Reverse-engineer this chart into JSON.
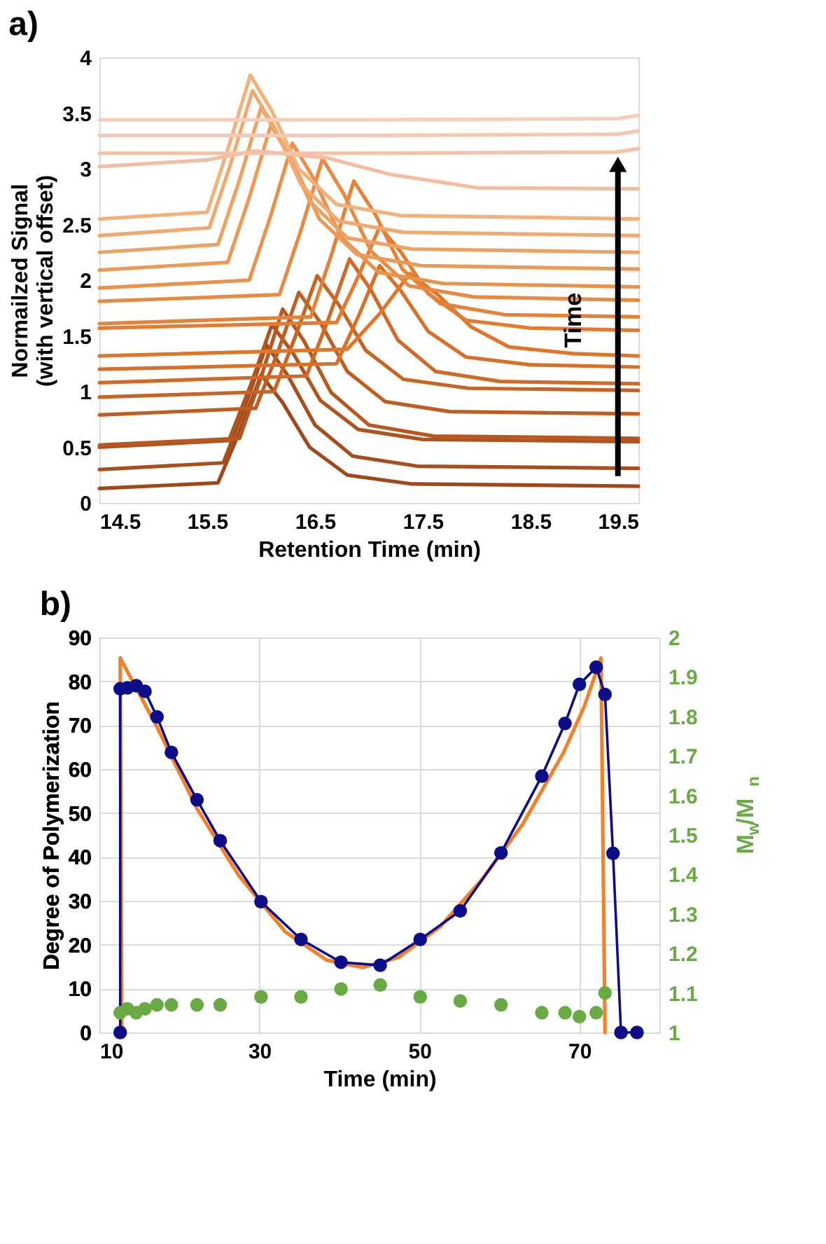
{
  "chart_data": [
    {
      "type": "line",
      "title": "a)",
      "xlabel": "Retention Time (min)",
      "ylabel": "Normailzed Signal\n(with vertical offset)",
      "xlim": [
        14.5,
        19.5
      ],
      "ylim": [
        0,
        4
      ],
      "xticks": [
        14.5,
        15.5,
        16.5,
        17.5,
        18.5,
        19.5
      ],
      "yticks": [
        0,
        0.5,
        1,
        1.5,
        2,
        2.5,
        3,
        3.5,
        4
      ],
      "grid": false,
      "annotations": [
        "Time"
      ],
      "series": [
        {
          "color": "#a0481a",
          "x": [
            14.5,
            15.6,
            15.8,
            16.0,
            16.2,
            16.45,
            16.8,
            17.4,
            19.5
          ],
          "values": [
            0.13,
            0.18,
            0.64,
            1.15,
            0.9,
            0.5,
            0.25,
            0.17,
            0.15
          ]
        },
        {
          "color": "#a84e1c",
          "x": [
            14.5,
            15.65,
            15.85,
            16.05,
            16.25,
            16.5,
            16.85,
            17.45,
            19.5
          ],
          "values": [
            0.3,
            0.36,
            0.86,
            1.42,
            1.14,
            0.7,
            0.42,
            0.33,
            0.31
          ]
        },
        {
          "color": "#b0531e",
          "x": [
            14.5,
            15.7,
            15.9,
            16.1,
            16.3,
            16.55,
            16.9,
            17.5,
            19.5
          ],
          "values": [
            0.5,
            0.56,
            1.05,
            1.6,
            1.34,
            0.92,
            0.66,
            0.57,
            0.55
          ]
        },
        {
          "color": "#b85820",
          "x": [
            14.5,
            15.8,
            16.0,
            16.2,
            16.4,
            16.65,
            17.0,
            17.6,
            19.5
          ],
          "values": [
            0.52,
            0.58,
            1.13,
            1.74,
            1.45,
            0.99,
            0.7,
            0.6,
            0.58
          ]
        },
        {
          "color": "#c05e22",
          "x": [
            14.5,
            15.95,
            16.15,
            16.35,
            16.55,
            16.8,
            17.15,
            17.75,
            19.5
          ],
          "values": [
            0.79,
            0.85,
            1.34,
            1.89,
            1.62,
            1.18,
            0.91,
            0.82,
            0.8
          ]
        },
        {
          "color": "#c86424",
          "x": [
            14.5,
            16.12,
            16.32,
            16.52,
            16.72,
            16.97,
            17.32,
            17.92,
            19.5
          ],
          "values": [
            0.95,
            1.0,
            1.5,
            2.04,
            1.78,
            1.37,
            1.11,
            1.03,
            1.01
          ]
        },
        {
          "color": "#d06a26",
          "x": [
            14.5,
            16.42,
            16.62,
            16.82,
            17.02,
            17.27,
            17.62,
            18.22,
            19.5
          ],
          "values": [
            1.08,
            1.14,
            1.64,
            2.19,
            1.91,
            1.46,
            1.18,
            1.09,
            1.07
          ]
        },
        {
          "color": "#d87028",
          "x": [
            14.5,
            16.7,
            16.9,
            17.1,
            17.3,
            17.55,
            17.9,
            18.5,
            19.5
          ],
          "values": [
            1.2,
            1.25,
            1.67,
            2.13,
            1.9,
            1.54,
            1.31,
            1.24,
            1.22
          ]
        },
        {
          "color": "#e0762a",
          "x": [
            14.5,
            16.8,
            17.1,
            17.38,
            17.65,
            17.95,
            18.3,
            18.9,
            19.5
          ],
          "values": [
            1.32,
            1.38,
            1.7,
            2.06,
            1.86,
            1.58,
            1.4,
            1.34,
            1.32
          ]
        },
        {
          "color": "#e47c30",
          "x": [
            14.5,
            16.7,
            16.9,
            17.1,
            17.3,
            17.55,
            17.9,
            18.5,
            19.5
          ],
          "values": [
            1.57,
            1.62,
            2.03,
            2.48,
            2.25,
            1.88,
            1.64,
            1.57,
            1.55
          ]
        },
        {
          "color": "#e68238",
          "x": [
            14.5,
            16.46,
            16.66,
            16.86,
            17.06,
            17.31,
            17.66,
            18.26,
            19.5
          ],
          "values": [
            1.61,
            1.67,
            2.25,
            2.89,
            2.59,
            2.1,
            1.79,
            1.69,
            1.67
          ]
        },
        {
          "color": "#e88a42",
          "x": [
            14.5,
            16.17,
            16.37,
            16.57,
            16.77,
            17.02,
            17.37,
            17.97,
            19.5
          ],
          "values": [
            1.81,
            1.87,
            2.45,
            3.09,
            2.77,
            2.26,
            1.95,
            1.85,
            1.82
          ]
        },
        {
          "color": "#ea924c",
          "x": [
            14.5,
            15.89,
            16.09,
            16.29,
            16.49,
            16.74,
            17.09,
            17.69,
            19.5
          ],
          "values": [
            1.93,
            2.0,
            2.58,
            3.23,
            2.91,
            2.39,
            2.07,
            1.97,
            1.94
          ]
        },
        {
          "color": "#ec9a58",
          "x": [
            14.5,
            15.69,
            15.89,
            16.09,
            16.29,
            16.54,
            16.89,
            17.49,
            19.5
          ],
          "values": [
            2.09,
            2.16,
            2.74,
            3.39,
            3.07,
            2.55,
            2.23,
            2.13,
            2.1
          ]
        },
        {
          "color": "#eea262",
          "x": [
            14.5,
            15.6,
            15.8,
            16.0,
            16.2,
            16.45,
            16.8,
            17.4,
            19.5
          ],
          "values": [
            2.25,
            2.32,
            2.9,
            3.55,
            3.23,
            2.71,
            2.38,
            2.28,
            2.25
          ]
        },
        {
          "color": "#f0aa70",
          "x": [
            14.5,
            15.52,
            15.72,
            15.92,
            16.12,
            16.37,
            16.72,
            17.32,
            19.5
          ],
          "values": [
            2.4,
            2.47,
            3.05,
            3.7,
            3.38,
            2.86,
            2.53,
            2.43,
            2.4
          ]
        },
        {
          "color": "#f2b27c",
          "x": [
            14.5,
            15.5,
            15.7,
            15.9,
            16.1,
            16.35,
            16.7,
            17.3,
            19.5
          ],
          "values": [
            2.55,
            2.61,
            3.2,
            3.84,
            3.52,
            3.0,
            2.68,
            2.58,
            2.55
          ]
        },
        {
          "color": "#f4bca0",
          "x": [
            14.5,
            15.5,
            15.95,
            16.6,
            17.2,
            18.0,
            19.5
          ],
          "values": [
            3.02,
            3.08,
            3.16,
            3.1,
            2.95,
            2.83,
            2.82
          ]
        },
        {
          "color": "#f4c2a8",
          "x": [
            14.5,
            17.0,
            19.3,
            19.5
          ],
          "values": [
            3.14,
            3.14,
            3.15,
            3.18
          ]
        },
        {
          "color": "#f5c8b2",
          "x": [
            14.5,
            17.0,
            19.3,
            19.5
          ],
          "values": [
            3.3,
            3.3,
            3.31,
            3.34
          ]
        },
        {
          "color": "#f6cebb",
          "x": [
            14.5,
            17.0,
            19.3,
            19.5
          ],
          "values": [
            3.44,
            3.44,
            3.45,
            3.48
          ]
        }
      ]
    },
    {
      "type": "line",
      "title": "b)",
      "xlabel": "Time (min)",
      "ylabel": "Degree of Polymerization",
      "y2label": "M$_{w}$/M$_{n}$",
      "xlim": [
        10,
        80
      ],
      "ylim": [
        0,
        90
      ],
      "y2lim": [
        1,
        2
      ],
      "xticks": [
        10,
        30,
        50,
        70
      ],
      "yticks": [
        0,
        10,
        20,
        30,
        40,
        50,
        60,
        70,
        80,
        90
      ],
      "y2ticks": [
        1,
        1.1,
        1.2,
        1.3,
        1.4,
        1.5,
        1.6,
        1.7,
        1.8,
        1.9,
        2
      ],
      "grid": true,
      "series": [
        {
          "type": "line",
          "marker": "none",
          "color": "#f0822e",
          "x": [
            12.8,
            12.6,
            17.2,
            22.2,
            27.4,
            33.2,
            38.4,
            42.9,
            47.4,
            52.6,
            57.7,
            62.9,
            68.0,
            70.6,
            72.7,
            73.2
          ],
          "values": [
            0,
            85.3,
            69.6,
            51,
            35.8,
            23,
            16.5,
            14.8,
            17.1,
            24.1,
            34.6,
            47.4,
            63.7,
            74.2,
            85.3,
            0
          ]
        },
        {
          "type": "line",
          "marker": "circle",
          "color": "#0d0d8a",
          "x": [
            12.6,
            12.6,
            13.5,
            14.6,
            15.7,
            17.2,
            19.0,
            22.2,
            25.1,
            30.2,
            35.2,
            40.2,
            45.1,
            50.1,
            55.1,
            60.2,
            65.3,
            68.2,
            70.0,
            72.1,
            73.2,
            74.2,
            75.2,
            77.2
          ],
          "values": [
            0,
            78.3,
            78.5,
            79,
            77.7,
            71.9,
            63.8,
            53,
            43.7,
            29.8,
            21.2,
            16,
            15.3,
            21.2,
            27.7,
            40.9,
            58.4,
            70.4,
            79.3,
            83.2,
            77,
            40.8,
            0,
            0
          ]
        },
        {
          "type": "scatter",
          "axis": "y2",
          "marker": "circle",
          "color": "#6aaa45",
          "x": [
            12.6,
            13.5,
            14.6,
            15.7,
            17.2,
            19.0,
            22.2,
            25.1,
            30.2,
            35.2,
            40.2,
            45.1,
            50.1,
            55.1,
            60.2,
            65.3,
            68.2,
            70.0,
            72.1,
            73.2
          ],
          "values": [
            1.05,
            1.06,
            1.05,
            1.06,
            1.07,
            1.07,
            1.07,
            1.07,
            1.09,
            1.09,
            1.11,
            1.12,
            1.09,
            1.08,
            1.07,
            1.05,
            1.05,
            1.04,
            1.05,
            1.1
          ]
        }
      ]
    }
  ]
}
